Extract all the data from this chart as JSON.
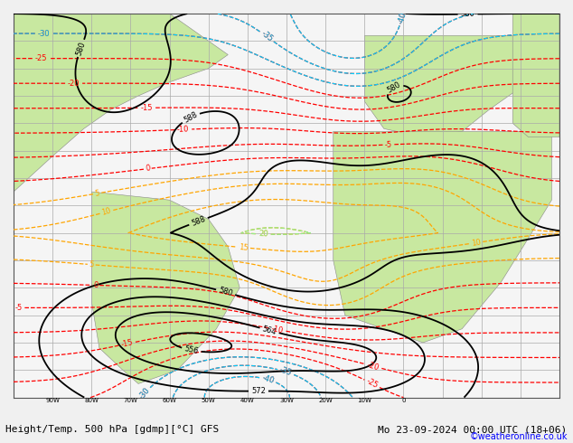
{
  "title_left": "Height/Temp. 500 hPa [gdmp][°C] GFS",
  "title_right": "Mo 23-09-2024 00:00 UTC (18+06)",
  "watermark": "©weatheronline.co.uk",
  "bg_color": "#f0f0f0",
  "land_color": "#c8e8a0",
  "ocean_color": "#f5f5f5",
  "grid_color": "#aaaaaa",
  "font_size_title": 8.0,
  "font_size_labels": 6,
  "font_size_watermark": 7,
  "lon_min": -100,
  "lon_max": 40,
  "lat_min": -60,
  "lat_max": 80
}
